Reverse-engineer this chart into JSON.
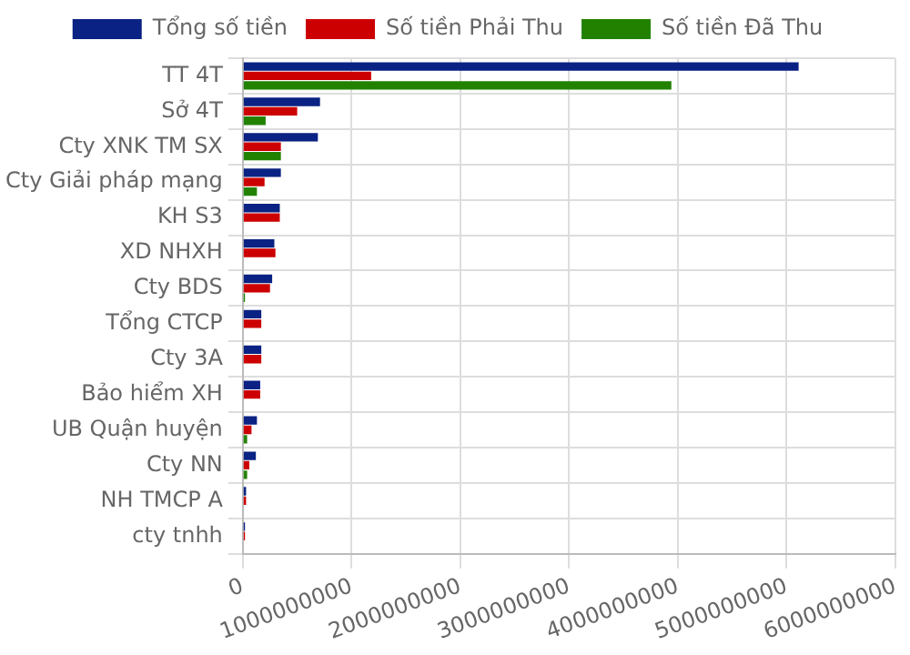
{
  "chart_data": {
    "type": "bar",
    "orientation": "horizontal",
    "categories": [
      "TT 4T",
      "Sở 4T",
      "Cty XNK TM SX",
      "Cty Giải pháp mạng",
      "KH S3",
      "XD NHXH",
      "Cty BDS",
      "Tổng CTCP",
      "Cty 3A",
      "Bảo hiểm XH",
      "UB Quận huyện",
      "Cty NN",
      "NH TMCP A",
      "cty tnhh"
    ],
    "series": [
      {
        "name": "Tổng số tiền",
        "color": "#0a2283",
        "values": [
          5110000000,
          710000000,
          690000000,
          350000000,
          340000000,
          290000000,
          270000000,
          170000000,
          170000000,
          160000000,
          130000000,
          120000000,
          30000000,
          20000000
        ]
      },
      {
        "name": "Số tiền Phải Thu",
        "color": "#cc0000",
        "values": [
          1180000000,
          500000000,
          350000000,
          200000000,
          340000000,
          300000000,
          250000000,
          170000000,
          170000000,
          160000000,
          80000000,
          60000000,
          30000000,
          20000000
        ]
      },
      {
        "name": "Số tiền Đã Thu",
        "color": "#228200",
        "values": [
          3940000000,
          210000000,
          350000000,
          130000000,
          0,
          0,
          20000000,
          0,
          0,
          0,
          40000000,
          40000000,
          0,
          0
        ]
      }
    ],
    "xlim": [
      0,
      6000000000
    ],
    "xticks": [
      0,
      1000000000,
      2000000000,
      3000000000,
      4000000000,
      5000000000,
      6000000000
    ],
    "grid": true,
    "legend": "top"
  }
}
